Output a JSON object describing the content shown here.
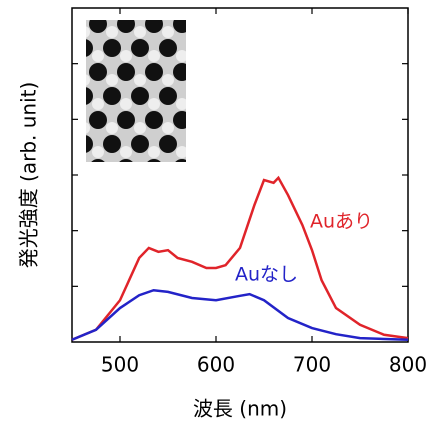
{
  "chart_data": {
    "type": "line",
    "x_label": "波長 (nm)",
    "y_label": "発光強度 (arb. unit)",
    "xlim": [
      450,
      800
    ],
    "xticks": [
      500,
      600,
      700,
      800
    ],
    "ylim": [
      0,
      6
    ],
    "yticks": [
      1,
      2,
      3,
      4,
      5
    ],
    "series": [
      {
        "name": "Auあり",
        "color": "#e0242a",
        "x": [
          450,
          475,
          500,
          520,
          530,
          540,
          550,
          560,
          575,
          590,
          600,
          610,
          625,
          640,
          650,
          660,
          665,
          675,
          690,
          700,
          710,
          725,
          750,
          775,
          800
        ],
        "values": [
          0.04,
          0.22,
          0.75,
          1.51,
          1.69,
          1.62,
          1.65,
          1.51,
          1.44,
          1.33,
          1.33,
          1.38,
          1.69,
          2.46,
          2.91,
          2.86,
          2.95,
          2.64,
          2.1,
          1.65,
          1.11,
          0.61,
          0.31,
          0.13,
          0.07
        ]
      },
      {
        "name": "Auなし",
        "color": "#2323c8",
        "x": [
          450,
          475,
          500,
          520,
          535,
          550,
          575,
          600,
          625,
          635,
          650,
          675,
          700,
          725,
          750,
          800
        ],
        "values": [
          0.04,
          0.22,
          0.61,
          0.84,
          0.93,
          0.9,
          0.79,
          0.75,
          0.83,
          0.86,
          0.75,
          0.43,
          0.25,
          0.14,
          0.07,
          0.04
        ]
      }
    ]
  }
}
